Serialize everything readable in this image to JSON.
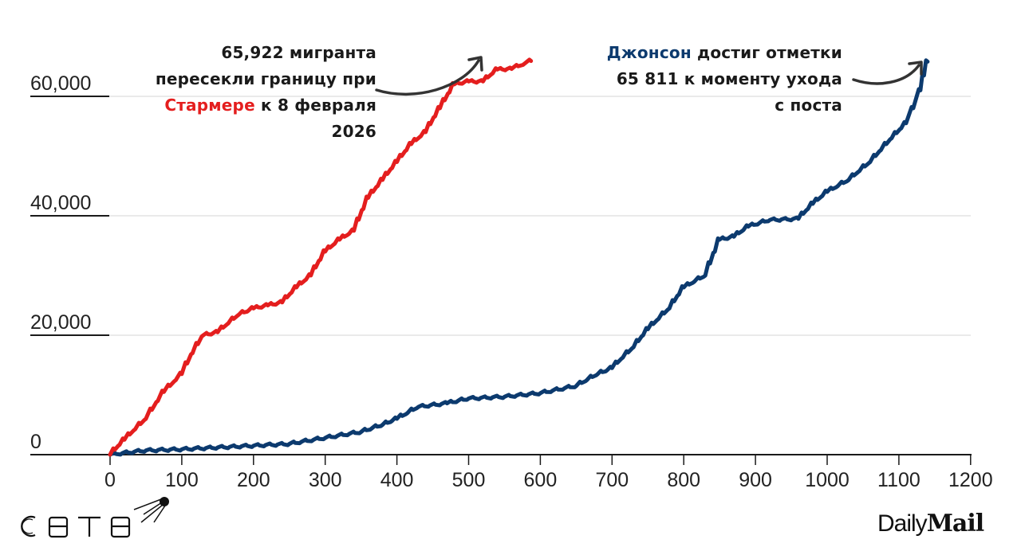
{
  "chart_data": {
    "type": "line",
    "title": "",
    "xlabel": "",
    "ylabel": "",
    "xlim": [
      0,
      1200
    ],
    "ylim": [
      0,
      65922
    ],
    "x_ticks": [
      0,
      100,
      200,
      300,
      400,
      500,
      600,
      700,
      800,
      900,
      1000,
      1100,
      1200
    ],
    "x_tick_labels": [
      "0",
      "100",
      "200",
      "300",
      "400",
      "500",
      "600",
      "700",
      "800",
      "900",
      "1000",
      "1100",
      "1200"
    ],
    "y_ticks": [
      0,
      20000,
      40000,
      60000
    ],
    "y_tick_labels": [
      "0",
      "20,000",
      "40,000",
      "60,000"
    ],
    "grid": "horizontal",
    "legend": "none (inline annotations)",
    "series": [
      {
        "name": "Стармер",
        "color": "#e41e1e",
        "x": [
          0,
          20,
          50,
          75,
          100,
          115,
          130,
          150,
          165,
          180,
          200,
          220,
          240,
          260,
          280,
          300,
          320,
          340,
          360,
          380,
          400,
          420,
          440,
          460,
          480,
          500,
          520,
          540,
          560,
          587
        ],
        "y": [
          0,
          2500,
          6000,
          10500,
          13500,
          17000,
          20000,
          20500,
          22000,
          23500,
          24500,
          25000,
          25500,
          28000,
          30000,
          34000,
          36000,
          37500,
          43000,
          46000,
          49000,
          52000,
          54000,
          58000,
          62000,
          62500,
          62500,
          64500,
          64600,
          65922
        ]
      },
      {
        "name": "Джонсон",
        "color": "#0c3a6e",
        "x": [
          0,
          50,
          100,
          150,
          200,
          250,
          300,
          350,
          380,
          400,
          430,
          470,
          500,
          550,
          600,
          650,
          680,
          700,
          730,
          750,
          780,
          800,
          830,
          850,
          870,
          890,
          920,
          960,
          980,
          1000,
          1030,
          1060,
          1090,
          1110,
          1120,
          1130,
          1135,
          1140
        ],
        "y": [
          0,
          700,
          900,
          1200,
          1500,
          1800,
          2800,
          3800,
          5000,
          6000,
          8000,
          8600,
          9400,
          9700,
          10300,
          11500,
          13500,
          14500,
          18000,
          21000,
          24500,
          28000,
          30000,
          36000,
          36500,
          38200,
          39300,
          39500,
          42000,
          44000,
          46000,
          49000,
          53000,
          55500,
          58000,
          61000,
          63500,
          65811
        ]
      }
    ],
    "annotations": [
      {
        "text": "65,922 мигранта пересекли границу при Стармере к 8 февраля 2026",
        "points_to": [
          587,
          65922
        ]
      },
      {
        "text": "Джонсон достиг отметки 65 811 к моменту ухода с поста",
        "points_to": [
          1140,
          65811
        ]
      }
    ]
  },
  "annotations": {
    "starmer": {
      "line1": "65,922 мигранта",
      "line2": "пересекли границу при",
      "line3_highlight": "Стармере",
      "line3_rest": " к 8 февраля",
      "line4": "2026",
      "highlight_color": "#e41e1e"
    },
    "johnson": {
      "line1_highlight": "Джонсон",
      "line1_rest": " достиг отметки",
      "line2": "65 811 к моменту ухода",
      "line3": "с поста",
      "highlight_color": "#0c3a6e"
    }
  },
  "logos": {
    "left": "СВТВ",
    "right_daily": "Daily",
    "right_mail": "Mail"
  },
  "colors": {
    "starmer": "#e41e1e",
    "johnson": "#0c3a6e",
    "grid": "#dddddd",
    "axis": "#1a1a1a",
    "arrow": "#333333"
  }
}
